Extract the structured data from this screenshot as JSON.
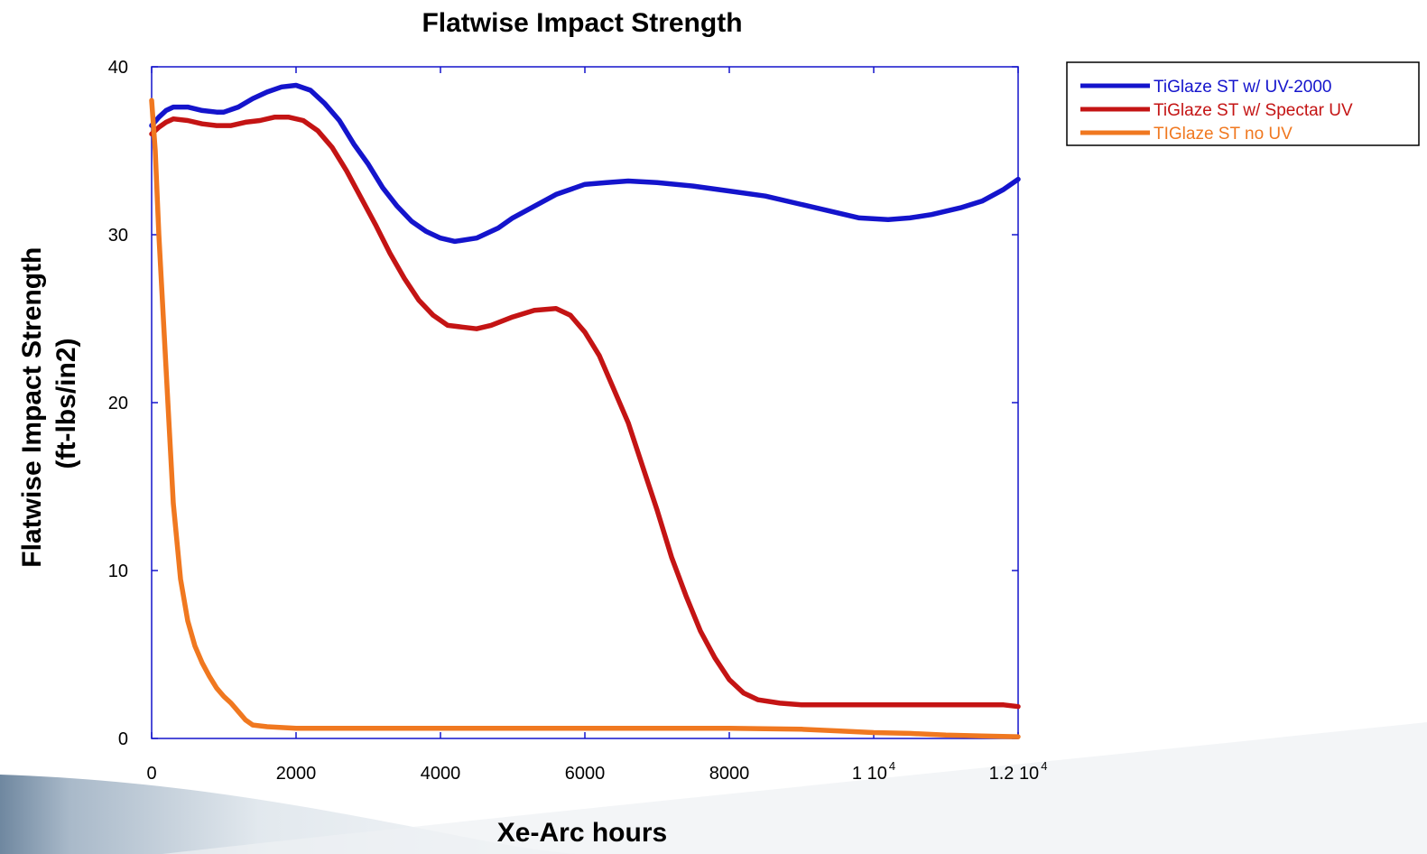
{
  "chart_data": {
    "type": "line",
    "title": "Flatwise Impact Strength",
    "xlabel": "Xe-Arc hours",
    "ylabel_lines": [
      "Flatwise Impact Strength",
      "(ft-lbs/in2)"
    ],
    "xlim": [
      0,
      12000
    ],
    "ylim": [
      0,
      40
    ],
    "grid": false,
    "legend_position": "top-right",
    "x_ticks": [
      {
        "value": 0,
        "label": "0",
        "exp": ""
      },
      {
        "value": 2000,
        "label": "2000",
        "exp": ""
      },
      {
        "value": 4000,
        "label": "4000",
        "exp": ""
      },
      {
        "value": 6000,
        "label": "6000",
        "exp": ""
      },
      {
        "value": 8000,
        "label": "8000",
        "exp": ""
      },
      {
        "value": 10000,
        "label": "1 10",
        "exp": "4"
      },
      {
        "value": 12000,
        "label": "1.2 10",
        "exp": "4"
      }
    ],
    "y_ticks": [
      {
        "value": 0,
        "label": "0"
      },
      {
        "value": 10,
        "label": "10"
      },
      {
        "value": 20,
        "label": "20"
      },
      {
        "value": 30,
        "label": "30"
      },
      {
        "value": 40,
        "label": "40"
      }
    ],
    "series": [
      {
        "name": "TiGlaze ST w/ UV-2000",
        "color": "#1414cc",
        "points": [
          [
            0,
            36.5
          ],
          [
            100,
            37.0
          ],
          [
            200,
            37.4
          ],
          [
            300,
            37.6
          ],
          [
            500,
            37.6
          ],
          [
            700,
            37.4
          ],
          [
            900,
            37.3
          ],
          [
            1000,
            37.3
          ],
          [
            1200,
            37.6
          ],
          [
            1400,
            38.1
          ],
          [
            1600,
            38.5
          ],
          [
            1800,
            38.8
          ],
          [
            2000,
            38.9
          ],
          [
            2200,
            38.6
          ],
          [
            2400,
            37.8
          ],
          [
            2600,
            36.8
          ],
          [
            2800,
            35.4
          ],
          [
            3000,
            34.2
          ],
          [
            3200,
            32.8
          ],
          [
            3400,
            31.7
          ],
          [
            3600,
            30.8
          ],
          [
            3800,
            30.2
          ],
          [
            4000,
            29.8
          ],
          [
            4200,
            29.6
          ],
          [
            4500,
            29.8
          ],
          [
            4800,
            30.4
          ],
          [
            5000,
            31.0
          ],
          [
            5300,
            31.7
          ],
          [
            5600,
            32.4
          ],
          [
            6000,
            33.0
          ],
          [
            6300,
            33.1
          ],
          [
            6600,
            33.2
          ],
          [
            7000,
            33.1
          ],
          [
            7500,
            32.9
          ],
          [
            8000,
            32.6
          ],
          [
            8500,
            32.3
          ],
          [
            9000,
            31.8
          ],
          [
            9500,
            31.3
          ],
          [
            9800,
            31.0
          ],
          [
            10200,
            30.9
          ],
          [
            10500,
            31.0
          ],
          [
            10800,
            31.2
          ],
          [
            11200,
            31.6
          ],
          [
            11500,
            32.0
          ],
          [
            11800,
            32.7
          ],
          [
            12000,
            33.3
          ]
        ]
      },
      {
        "name": "TiGlaze ST w/ Spectar UV",
        "color": "#c41414",
        "points": [
          [
            0,
            36.0
          ],
          [
            100,
            36.4
          ],
          [
            200,
            36.7
          ],
          [
            300,
            36.9
          ],
          [
            500,
            36.8
          ],
          [
            700,
            36.6
          ],
          [
            900,
            36.5
          ],
          [
            1100,
            36.5
          ],
          [
            1300,
            36.7
          ],
          [
            1500,
            36.8
          ],
          [
            1700,
            37.0
          ],
          [
            1900,
            37.0
          ],
          [
            2100,
            36.8
          ],
          [
            2300,
            36.2
          ],
          [
            2500,
            35.2
          ],
          [
            2700,
            33.8
          ],
          [
            2900,
            32.2
          ],
          [
            3100,
            30.6
          ],
          [
            3300,
            28.9
          ],
          [
            3500,
            27.4
          ],
          [
            3700,
            26.1
          ],
          [
            3900,
            25.2
          ],
          [
            4100,
            24.6
          ],
          [
            4300,
            24.5
          ],
          [
            4500,
            24.4
          ],
          [
            4700,
            24.6
          ],
          [
            5000,
            25.1
          ],
          [
            5300,
            25.5
          ],
          [
            5600,
            25.6
          ],
          [
            5800,
            25.2
          ],
          [
            6000,
            24.2
          ],
          [
            6200,
            22.8
          ],
          [
            6400,
            20.8
          ],
          [
            6600,
            18.8
          ],
          [
            6800,
            16.2
          ],
          [
            7000,
            13.6
          ],
          [
            7200,
            10.8
          ],
          [
            7400,
            8.5
          ],
          [
            7600,
            6.4
          ],
          [
            7800,
            4.8
          ],
          [
            8000,
            3.5
          ],
          [
            8200,
            2.7
          ],
          [
            8400,
            2.3
          ],
          [
            8700,
            2.1
          ],
          [
            9000,
            2.0
          ],
          [
            10000,
            2.0
          ],
          [
            11000,
            2.0
          ],
          [
            11800,
            2.0
          ],
          [
            12000,
            1.9
          ]
        ]
      },
      {
        "name": "TIGlaze ST no UV",
        "color": "#f07820",
        "points": [
          [
            0,
            38.0
          ],
          [
            50,
            35.0
          ],
          [
            100,
            30.0
          ],
          [
            200,
            22.0
          ],
          [
            300,
            14.0
          ],
          [
            400,
            9.5
          ],
          [
            500,
            7.0
          ],
          [
            600,
            5.5
          ],
          [
            700,
            4.5
          ],
          [
            800,
            3.7
          ],
          [
            900,
            3.0
          ],
          [
            1000,
            2.5
          ],
          [
            1100,
            2.1
          ],
          [
            1200,
            1.6
          ],
          [
            1300,
            1.1
          ],
          [
            1400,
            0.8
          ],
          [
            1600,
            0.7
          ],
          [
            1800,
            0.65
          ],
          [
            2000,
            0.6
          ],
          [
            3000,
            0.6
          ],
          [
            4000,
            0.6
          ],
          [
            5000,
            0.6
          ],
          [
            6000,
            0.6
          ],
          [
            7000,
            0.6
          ],
          [
            8000,
            0.6
          ],
          [
            9000,
            0.55
          ],
          [
            9500,
            0.45
          ],
          [
            10000,
            0.35
          ],
          [
            10500,
            0.3
          ],
          [
            11000,
            0.2
          ],
          [
            11500,
            0.15
          ],
          [
            12000,
            0.1
          ]
        ]
      }
    ]
  }
}
